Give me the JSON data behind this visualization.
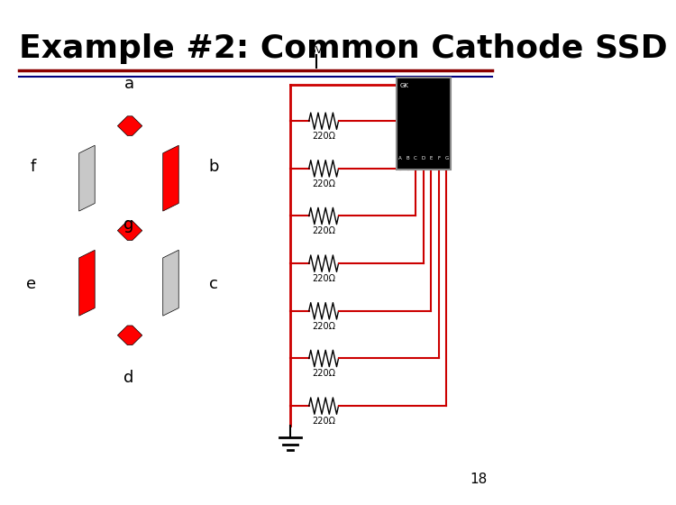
{
  "title": "Example #2: Common Cathode SSD",
  "title_fontsize": 26,
  "title_color": "#000000",
  "bg_color": "#ffffff",
  "page_number": "18",
  "segment_on_color": "#FF0000",
  "segment_off_color": "#C8C8C8",
  "underline_color_top": "#8B0000",
  "underline_color_bottom": "#000080",
  "wire_color": "#CC0000"
}
